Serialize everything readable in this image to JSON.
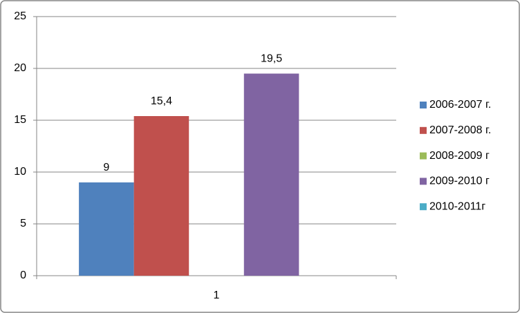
{
  "chart_data": {
    "type": "bar",
    "categories": [
      "1"
    ],
    "series": [
      {
        "name": "2006-2007 г.",
        "color": "#4f81bd",
        "values": [
          9
        ]
      },
      {
        "name": "2007-2008 г.",
        "color": "#c0504d",
        "values": [
          15.4
        ],
        "value_labels": [
          "15,4"
        ]
      },
      {
        "name": "2008-2009 г",
        "color": "#9bbb59",
        "values": [
          null
        ]
      },
      {
        "name": "2009-2010 г",
        "color": "#8064a2",
        "values": [
          19.5
        ],
        "value_labels": [
          "19,5"
        ]
      },
      {
        "name": "2010-2011г",
        "color": "#4bacc6",
        "values": [
          null
        ]
      }
    ],
    "ylim": [
      0,
      25
    ],
    "yticks": [
      0,
      5,
      10,
      15,
      20,
      25
    ],
    "grid": true,
    "legend": "right"
  }
}
